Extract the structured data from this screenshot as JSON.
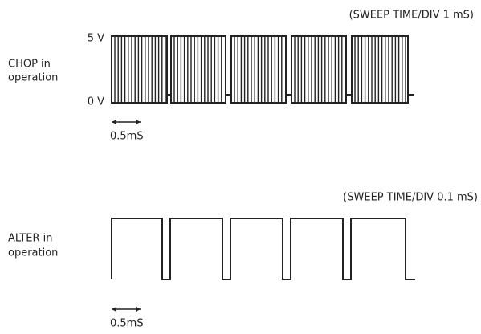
{
  "chop": {
    "sweep": "(SWEEP TIME/DIV 1 mS)",
    "label_1": "CHOP in",
    "label_2": "operation",
    "level_high": "5 V",
    "level_low": "0 V",
    "scale": "0.5mS"
  },
  "alter": {
    "sweep": "(SWEEP TIME/DIV 0.1 mS)",
    "label_1": "ALTER in",
    "label_2": "operation",
    "scale": "0.5mS"
  }
}
